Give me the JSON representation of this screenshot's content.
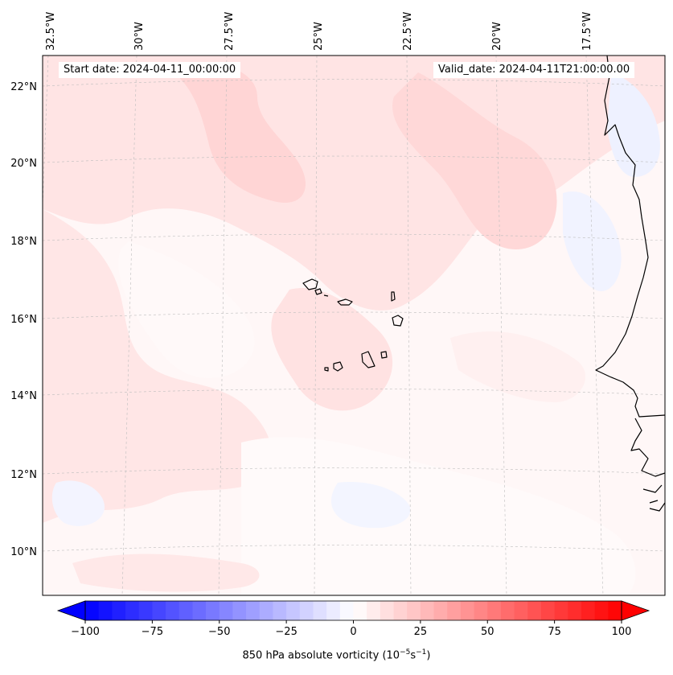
{
  "map": {
    "start_date_text": "Start date: 2024-04-11_00:00:00",
    "valid_date_text": "Valid_date: 2024-04-11T21:00:00.00",
    "top_lon_labels": [
      "32.5°W",
      "30°W",
      "27.5°W",
      "25°W",
      "22.5°W",
      "20°W",
      "17.5°W"
    ],
    "left_lat_labels": [
      "22°N",
      "20°N",
      "18°N",
      "16°N",
      "14°N",
      "12°N",
      "10°N"
    ],
    "field": "850 hPa absolute vorticity",
    "colors": {
      "coast": "#000000",
      "gridline": "#bdbdbd",
      "weak_positive": "#ffe3e3",
      "positive": "#ffd1d1",
      "weak_negative": "#eef0ff"
    }
  },
  "colorbar": {
    "cmap": "bwr",
    "vmin": -100,
    "vmax": 100,
    "step": 5,
    "ticks": [
      "−100",
      "−75",
      "−50",
      "−25",
      "0",
      "25",
      "50",
      "75",
      "100"
    ],
    "label_main": "850 hPa absolute vorticity (10",
    "label_exp1": "−5",
    "label_mid": "s",
    "label_exp2": "−1",
    "label_end": ")"
  }
}
